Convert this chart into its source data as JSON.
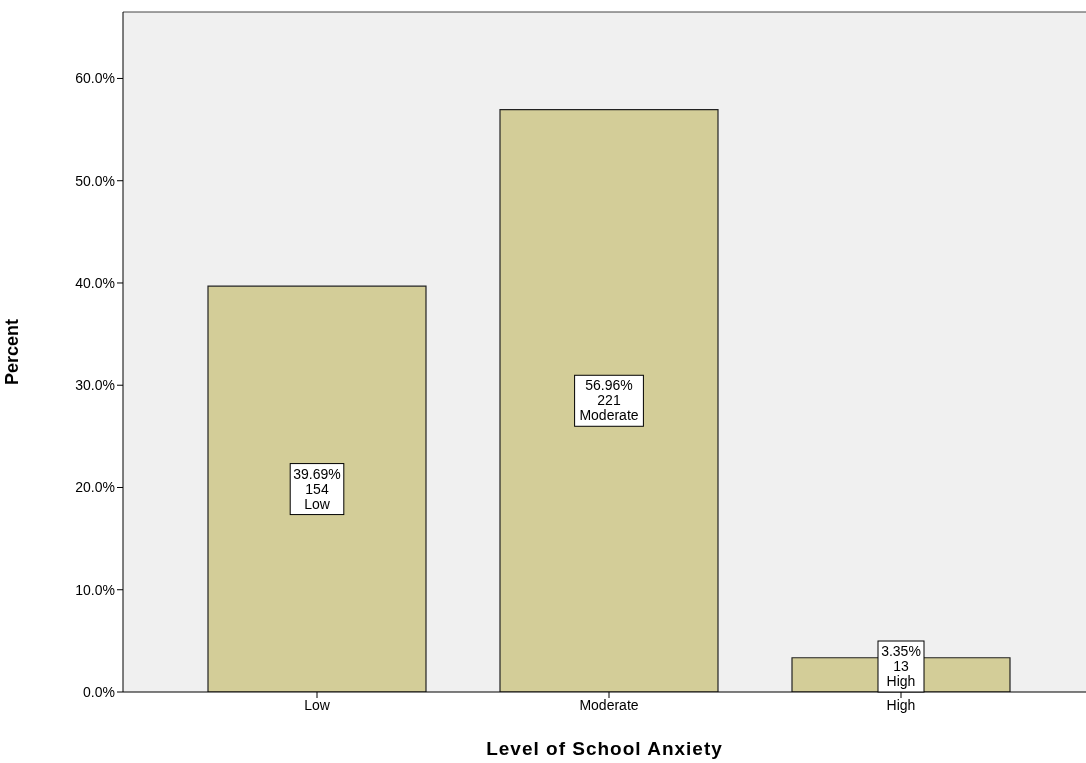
{
  "chart_data": {
    "type": "bar",
    "xlabel": "Level of School Anxiety",
    "ylabel": "Percent",
    "categories": [
      "Low",
      "Moderate",
      "High"
    ],
    "values": [
      39.69,
      56.96,
      3.35
    ],
    "color": "#d3cd98",
    "value_labels": [
      "39.69%\n154\nLow",
      "56.96%\n221\nModerate",
      "3.35%\n13\nHigh"
    ],
    "ylim": [
      0,
      66.5
    ],
    "yticks": [
      {
        "value": 0,
        "label": "0.0%"
      },
      {
        "value": 10,
        "label": "10.0%"
      },
      {
        "value": 20,
        "label": "20.0%"
      },
      {
        "value": 30,
        "label": "30.0%"
      },
      {
        "value": 40,
        "label": "40.0%"
      },
      {
        "value": 50,
        "label": "50.0%"
      },
      {
        "value": 60,
        "label": "60.0%"
      }
    ],
    "grid": false,
    "legend": false
  }
}
